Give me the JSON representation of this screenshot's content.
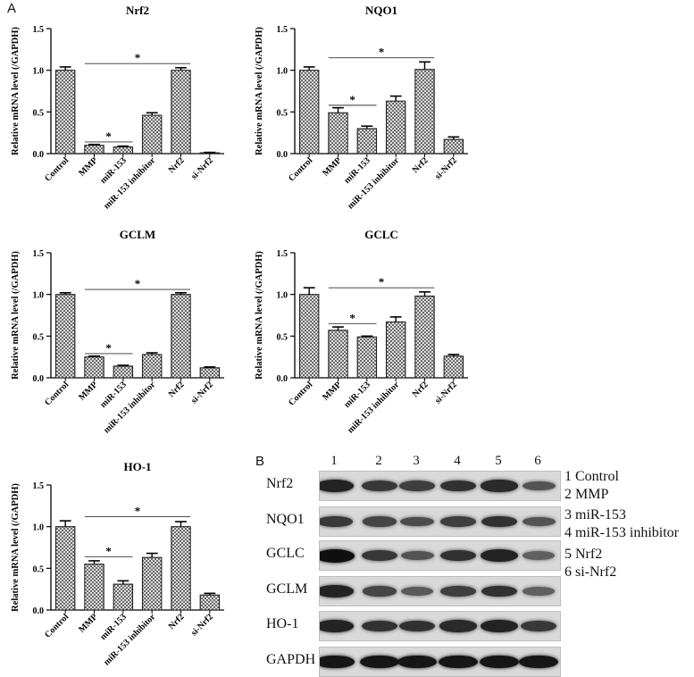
{
  "panel_a_label": "A",
  "panel_b_label": "B",
  "chart_data": [
    {
      "type": "bar",
      "title": "Nrf2",
      "ylabel": "Relative mRNA level (/GAPDH)",
      "xlabel": "",
      "ylim": [
        0,
        1.5
      ],
      "yticks": [
        "0.0",
        "0.5",
        "1.0",
        "1.5"
      ],
      "categories": [
        "Control",
        "MMP",
        "miR-153",
        "miR-153 inhibitor",
        "Nrf2",
        "si-Nrf2"
      ],
      "values": [
        1.0,
        0.1,
        0.08,
        0.46,
        1.0,
        0.01
      ],
      "errors": [
        0.04,
        0.01,
        0.01,
        0.03,
        0.03,
        0.005
      ],
      "significance": [
        {
          "from": 1,
          "to": 4,
          "y": 1.08,
          "label": "*"
        },
        {
          "from": 1,
          "to": 2,
          "y": 0.14,
          "label": "*"
        }
      ]
    },
    {
      "type": "bar",
      "title": "NQO1",
      "ylabel": "Relative mRNA level (/GAPDH)",
      "xlabel": "",
      "ylim": [
        0,
        1.5
      ],
      "yticks": [
        "0.0",
        "0.5",
        "1.0",
        "1.5"
      ],
      "categories": [
        "Control",
        "MMP",
        "miR-153",
        "miR-153 inhibitor",
        "Nrf2",
        "si-Nrf2"
      ],
      "values": [
        1.0,
        0.49,
        0.3,
        0.63,
        1.01,
        0.17
      ],
      "errors": [
        0.04,
        0.06,
        0.03,
        0.06,
        0.09,
        0.03
      ],
      "significance": [
        {
          "from": 1,
          "to": 4,
          "y": 1.15,
          "label": "*"
        },
        {
          "from": 1,
          "to": 2,
          "y": 0.58,
          "label": "*"
        }
      ]
    },
    {
      "type": "bar",
      "title": "GCLM",
      "ylabel": "Relative mRNA level (/GAPDH)",
      "xlabel": "",
      "ylim": [
        0,
        1.5
      ],
      "yticks": [
        "0.0",
        "0.5",
        "1.0",
        "1.5"
      ],
      "categories": [
        "Control",
        "MMP",
        "miR-153",
        "miR-153 inhibitor",
        "Nrf2",
        "si-Nrf2"
      ],
      "values": [
        1.0,
        0.25,
        0.14,
        0.28,
        1.0,
        0.12
      ],
      "errors": [
        0.02,
        0.01,
        0.01,
        0.02,
        0.02,
        0.01
      ],
      "significance": [
        {
          "from": 1,
          "to": 4,
          "y": 1.06,
          "label": "*"
        },
        {
          "from": 1,
          "to": 2,
          "y": 0.29,
          "label": "*"
        }
      ]
    },
    {
      "type": "bar",
      "title": "GCLC",
      "ylabel": "Relative mRNA level (/GAPDH)",
      "xlabel": "",
      "ylim": [
        0,
        1.5
      ],
      "yticks": [
        "0.0",
        "0.5",
        "1.0",
        "1.5"
      ],
      "categories": [
        "Control",
        "MMP",
        "miR-153",
        "miR-153 inhibitor",
        "Nrf2",
        "si-Nrf2"
      ],
      "values": [
        1.0,
        0.57,
        0.49,
        0.67,
        0.98,
        0.26
      ],
      "errors": [
        0.08,
        0.04,
        0.01,
        0.06,
        0.05,
        0.02
      ],
      "significance": [
        {
          "from": 1,
          "to": 4,
          "y": 1.08,
          "label": "*"
        },
        {
          "from": 1,
          "to": 2,
          "y": 0.65,
          "label": "*"
        }
      ]
    },
    {
      "type": "bar",
      "title": "HO-1",
      "ylabel": "Relative mRNA level (/GAPDH)",
      "xlabel": "",
      "ylim": [
        0,
        1.5
      ],
      "yticks": [
        "0.0",
        "0.5",
        "1.0",
        "1.5"
      ],
      "categories": [
        "Control",
        "MMP",
        "miR-153",
        "miR-153 inhibitor",
        "Nrf2",
        "si-Nrf2"
      ],
      "values": [
        1.0,
        0.55,
        0.31,
        0.63,
        1.0,
        0.18
      ],
      "errors": [
        0.07,
        0.04,
        0.04,
        0.05,
        0.06,
        0.02
      ],
      "significance": [
        {
          "from": 1,
          "to": 4,
          "y": 1.12,
          "label": "*"
        },
        {
          "from": 1,
          "to": 2,
          "y": 0.64,
          "label": "*"
        }
      ]
    }
  ],
  "blot": {
    "lane_numbers": [
      "1",
      "2",
      "3",
      "4",
      "5",
      "6"
    ],
    "rows": [
      {
        "label": "Nrf2",
        "intensities": [
          0.85,
          0.7,
          0.65,
          0.75,
          0.8,
          0.5
        ]
      },
      {
        "label": "NQO1",
        "intensities": [
          0.7,
          0.6,
          0.55,
          0.65,
          0.75,
          0.5
        ]
      },
      {
        "label": "GCLC",
        "intensities": [
          1.0,
          0.7,
          0.5,
          0.75,
          0.85,
          0.4
        ]
      },
      {
        "label": "GCLM",
        "intensities": [
          0.85,
          0.6,
          0.45,
          0.65,
          0.75,
          0.4
        ]
      },
      {
        "label": "HO-1",
        "intensities": [
          0.85,
          0.75,
          0.75,
          0.8,
          0.85,
          0.7
        ]
      },
      {
        "label": "GAPDH",
        "intensities": [
          0.95,
          0.95,
          0.95,
          0.95,
          0.95,
          0.95
        ]
      }
    ],
    "legend": [
      "1 Control",
      "2 MMP",
      "3 miR-153",
      "4 miR-153 inhibitor",
      "5 Nrf2",
      "6 si-Nrf2"
    ]
  }
}
